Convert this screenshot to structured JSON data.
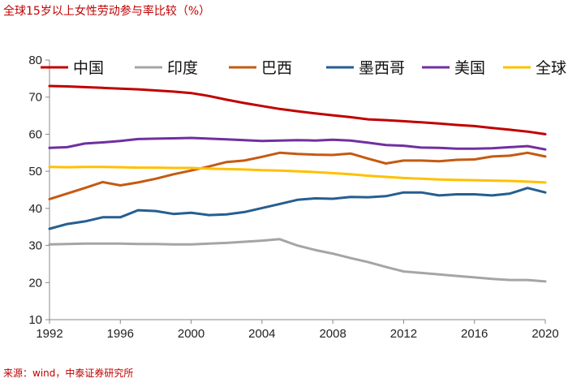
{
  "header": {
    "title": "全球15岁以上女性劳动参与率比较（%）"
  },
  "footer": {
    "source": "来源：wind，中泰证券研究所"
  },
  "chart_data": {
    "type": "line",
    "title": "全球15岁以上女性劳动参与率比较（%）",
    "xlabel": "",
    "ylabel": "",
    "xlim": [
      1992,
      2020
    ],
    "ylim": [
      10,
      80
    ],
    "yticks": [
      10,
      20,
      30,
      40,
      50,
      60,
      70,
      80
    ],
    "xticks": [
      1992,
      1996,
      2000,
      2004,
      2008,
      2012,
      2016,
      2020
    ],
    "grid": false,
    "legend": "top",
    "x": [
      1992,
      1993,
      1994,
      1995,
      1996,
      1997,
      1998,
      1999,
      2000,
      2001,
      2002,
      2003,
      2004,
      2005,
      2006,
      2007,
      2008,
      2009,
      2010,
      2011,
      2012,
      2013,
      2014,
      2015,
      2016,
      2017,
      2018,
      2019,
      2020
    ],
    "series": [
      {
        "name": "中国",
        "color": "#c00000",
        "values": [
          73.0,
          72.9,
          72.7,
          72.5,
          72.3,
          72.1,
          71.8,
          71.5,
          71.1,
          70.3,
          69.3,
          68.4,
          67.6,
          66.8,
          66.2,
          65.6,
          65.1,
          64.6,
          64.0,
          63.8,
          63.5,
          63.2,
          62.9,
          62.5,
          62.2,
          61.7,
          61.2,
          60.7,
          60.0
        ]
      },
      {
        "name": "印度",
        "color": "#a5a5a5",
        "values": [
          30.3,
          30.4,
          30.5,
          30.5,
          30.5,
          30.4,
          30.4,
          30.3,
          30.3,
          30.5,
          30.7,
          31.0,
          31.3,
          31.7,
          30.0,
          28.8,
          27.8,
          26.6,
          25.5,
          24.2,
          23.0,
          22.6,
          22.2,
          21.8,
          21.4,
          21.0,
          20.7,
          20.7,
          20.3
        ]
      },
      {
        "name": "巴西",
        "color": "#c55a11",
        "values": [
          42.5,
          44.0,
          45.5,
          47.1,
          46.2,
          47.0,
          48.0,
          49.2,
          50.2,
          51.3,
          52.5,
          52.9,
          53.9,
          55.0,
          54.7,
          54.5,
          54.4,
          54.8,
          53.4,
          52.1,
          52.9,
          52.9,
          52.7,
          53.1,
          53.2,
          54.0,
          54.2,
          55.0,
          54.0
        ]
      },
      {
        "name": "墨西哥",
        "color": "#255e91",
        "values": [
          34.5,
          35.8,
          36.5,
          37.6,
          37.6,
          39.5,
          39.3,
          38.5,
          38.8,
          38.2,
          38.4,
          39.0,
          40.1,
          41.2,
          42.3,
          42.7,
          42.6,
          43.1,
          43.0,
          43.3,
          44.3,
          44.3,
          43.5,
          43.8,
          43.8,
          43.5,
          44.0,
          45.5,
          44.3
        ]
      },
      {
        "name": "美国",
        "color": "#7030a0",
        "values": [
          56.3,
          56.5,
          57.5,
          57.8,
          58.2,
          58.7,
          58.8,
          58.9,
          59.0,
          58.8,
          58.6,
          58.4,
          58.2,
          58.3,
          58.4,
          58.3,
          58.5,
          58.3,
          57.7,
          57.1,
          56.9,
          56.4,
          56.3,
          56.1,
          56.1,
          56.2,
          56.5,
          56.8,
          55.9
        ]
      },
      {
        "name": "全球",
        "color": "#ffc000",
        "values": [
          51.2,
          51.1,
          51.2,
          51.2,
          51.1,
          51.0,
          51.0,
          50.9,
          50.9,
          50.7,
          50.6,
          50.5,
          50.3,
          50.2,
          50.0,
          49.8,
          49.5,
          49.2,
          48.8,
          48.5,
          48.2,
          48.0,
          47.8,
          47.7,
          47.6,
          47.5,
          47.4,
          47.2,
          47.0
        ]
      }
    ]
  }
}
